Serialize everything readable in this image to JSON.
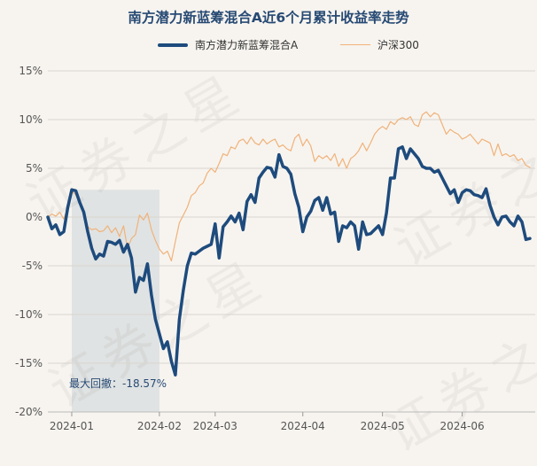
{
  "chart_data": {
    "type": "line",
    "title": "南方潜力新蓝筹混合A近6个月累计收益率走势",
    "legend": "top-center",
    "grid": true,
    "ylim": [
      -20,
      15
    ],
    "y_ticks": [
      15,
      10,
      5,
      0,
      -5,
      -10,
      -15,
      -20
    ],
    "y_tick_labels": [
      "15%",
      "10%",
      "5%",
      "0%",
      "-5%",
      "-10%",
      "-15%",
      "-20%"
    ],
    "x_ticks": [
      "2024-01",
      "2024-02",
      "2024-03",
      "2024-04",
      "2024-05",
      "2024-06"
    ],
    "x_tick_index": [
      6,
      28,
      42,
      64,
      84,
      104
    ],
    "annotation": "最大回撤：-18.57%",
    "drawdown_span_index": [
      6,
      28
    ],
    "watermark": "证券之星",
    "series": [
      {
        "name": "南方潜力新蓝筹混合A",
        "color": "#1e4b7d",
        "values": [
          0,
          -1.2,
          -0.8,
          -1.8,
          -1.5,
          1.0,
          2.8,
          2.7,
          1.5,
          0.5,
          -1.5,
          -3.2,
          -4.3,
          -3.8,
          -4.0,
          -2.5,
          -2.6,
          -2.8,
          -2.4,
          -3.6,
          -2.8,
          -4.2,
          -7.7,
          -6.2,
          -6.5,
          -4.8,
          -8.0,
          -10.5,
          -12.0,
          -13.5,
          -12.8,
          -14.8,
          -16.2,
          -10.5,
          -7.5,
          -5.0,
          -3.7,
          -3.8,
          -3.5,
          -3.2,
          -3.0,
          -2.8,
          -0.7,
          -4.2,
          -1.0,
          -0.5,
          0.1,
          -0.5,
          0.4,
          -1.3,
          1.6,
          2.3,
          1.5,
          4.0,
          4.6,
          5.1,
          5.0,
          4.1,
          6.4,
          5.2,
          5.0,
          4.4,
          2.4,
          1.0,
          -1.5,
          0,
          0.6,
          1.7,
          2.0,
          0.7,
          2.0,
          0.3,
          0.5,
          -2.5,
          -0.9,
          -1.1,
          -0.5,
          -0.9,
          -3.3,
          -0.5,
          -1.8,
          -1.7,
          -1.3,
          -0.9,
          -1.8,
          0.4,
          4.0,
          4.0,
          7.0,
          7.2,
          6.0,
          7.0,
          6.5,
          6.0,
          5.2,
          5.0,
          5.0,
          4.6,
          4.8,
          4.0,
          3.2,
          2.4,
          2.8,
          1.5,
          2.5,
          2.8,
          2.7,
          2.3,
          2.2,
          2.0,
          2.9,
          1.2,
          0,
          -0.8,
          0,
          0.1,
          -0.5,
          -0.9,
          0.1,
          -0.5,
          -2.3,
          -2.2
        ]
      },
      {
        "name": "沪深300",
        "color": "#f0b27a",
        "values": [
          0,
          0.3,
          0.1,
          0.5,
          -0.2,
          1.0,
          2.6,
          2.3,
          1.4,
          0.5,
          -1.0,
          -1.3,
          -1.2,
          -1.5,
          -1.4,
          -0.9,
          -1.6,
          -1.1,
          -2.0,
          -0.9,
          -3.2,
          -2.2,
          -1.8,
          0.2,
          -0.3,
          0.4,
          -1.3,
          -2.4,
          -3.3,
          -3.8,
          -3.5,
          -4.5,
          -2.5,
          -0.6,
          0.2,
          1.0,
          2.2,
          2.5,
          3.2,
          3.5,
          4.5,
          5.0,
          4.6,
          5.5,
          6.5,
          6.3,
          7.2,
          7.0,
          7.8,
          8.0,
          7.5,
          8.2,
          7.6,
          7.4,
          8.0,
          7.5,
          7.8,
          8.0,
          7.2,
          7.4,
          7.0,
          6.8,
          8.1,
          8.5,
          7.3,
          8.0,
          7.3,
          5.7,
          6.3,
          6.0,
          6.3,
          5.8,
          6.5,
          5.2,
          6.0,
          5.0,
          6.0,
          6.3,
          6.8,
          7.6,
          6.8,
          7.6,
          8.5,
          9.0,
          9.3,
          9.0,
          9.8,
          9.5,
          10.0,
          10.2,
          10.0,
          10.3,
          9.5,
          9.3,
          10.5,
          10.8,
          10.3,
          10.7,
          10.5,
          9.5,
          8.5,
          9.0,
          8.7,
          8.5,
          8.0,
          8.2,
          8.5,
          8.0,
          7.5,
          8.0,
          7.8,
          7.6,
          6.3,
          7.5,
          6.3,
          6.5,
          6.2,
          6.4,
          5.8,
          6.0,
          5.3,
          5.1
        ]
      }
    ]
  }
}
